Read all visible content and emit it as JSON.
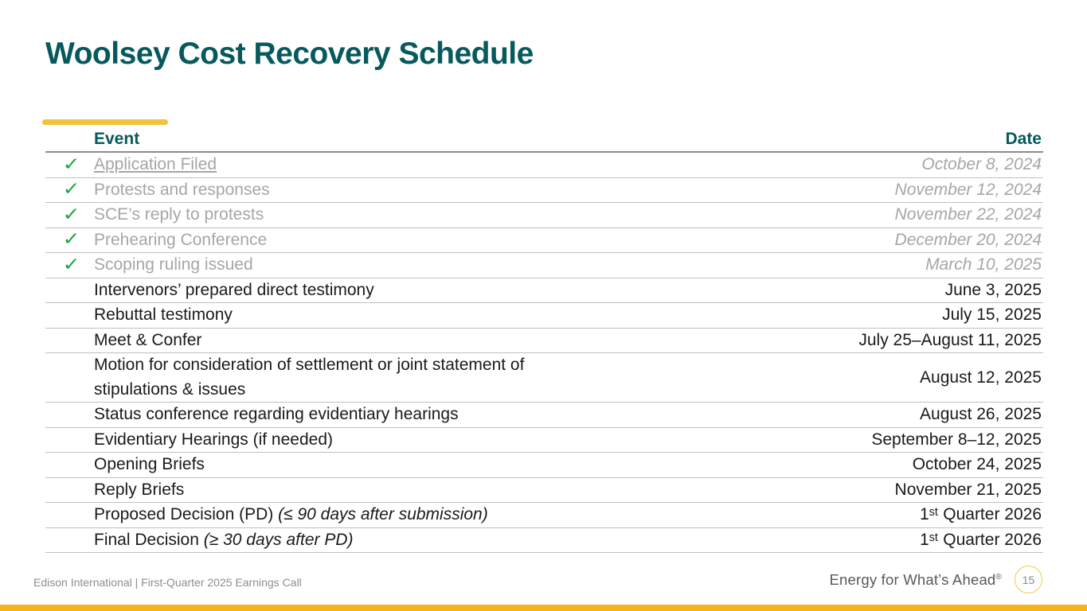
{
  "slide": {
    "title": "Woolsey Cost Recovery Schedule",
    "footer_left": "Edison International |  First-Quarter 2025 Earnings Call",
    "tagline": "Energy for What’s Ahead",
    "tagline_reg": "®",
    "page_number": "15"
  },
  "colors": {
    "teal": "#06595D",
    "gold_accent": "#F4C13D",
    "gold_bar": "#F7B41A",
    "check_green": "#22A347",
    "done_gray": "#A6A6A6",
    "text_black": "#1A1A1A",
    "row_line": "#C0C0C0",
    "header_line": "#8C8C8C"
  },
  "table": {
    "columns": {
      "event": "Event",
      "date": "Date"
    },
    "check_icon": "✓",
    "rows": [
      {
        "event": "Application Filed",
        "date": "October 8, 2024",
        "done": true,
        "underline": true
      },
      {
        "event": "Protests and responses",
        "date": "November 12, 2024",
        "done": true
      },
      {
        "event": "SCE’s reply to protests",
        "date": "November 22, 2024",
        "done": true
      },
      {
        "event": "Prehearing Conference",
        "date": "December 20, 2024",
        "done": true
      },
      {
        "event": "Scoping ruling issued",
        "date": "March 10, 2025",
        "done": true
      },
      {
        "event": "Intervenors’ prepared direct testimony",
        "date": "June 3, 2025",
        "done": false
      },
      {
        "event": "Rebuttal testimony",
        "date": "July 15, 2025",
        "done": false
      },
      {
        "event": "Meet & Confer",
        "date": "July 25–August 11, 2025",
        "done": false
      },
      {
        "event": "Motion for consideration of settlement or joint statement of\nstipulations & issues",
        "date": "August 12, 2025",
        "done": false
      },
      {
        "event": "Status conference regarding evidentiary hearings",
        "date": "August 26, 2025",
        "done": false
      },
      {
        "event": "Evidentiary Hearings (if needed)",
        "date": "September 8–12, 2025",
        "done": false
      },
      {
        "event": "Opening Briefs",
        "date": "October 24, 2025",
        "done": false
      },
      {
        "event": "Reply Briefs",
        "date": "November 21, 2025",
        "done": false
      },
      {
        "event": "Proposed Decision (PD) ",
        "note": "(≤ 90 days after submission)",
        "date": "1ˢᵗ Quarter 2026",
        "done": false
      },
      {
        "event": "Final Decision ",
        "note": "(≥ 30 days after PD)",
        "date": "1ˢᵗ Quarter 2026",
        "done": false
      }
    ]
  }
}
